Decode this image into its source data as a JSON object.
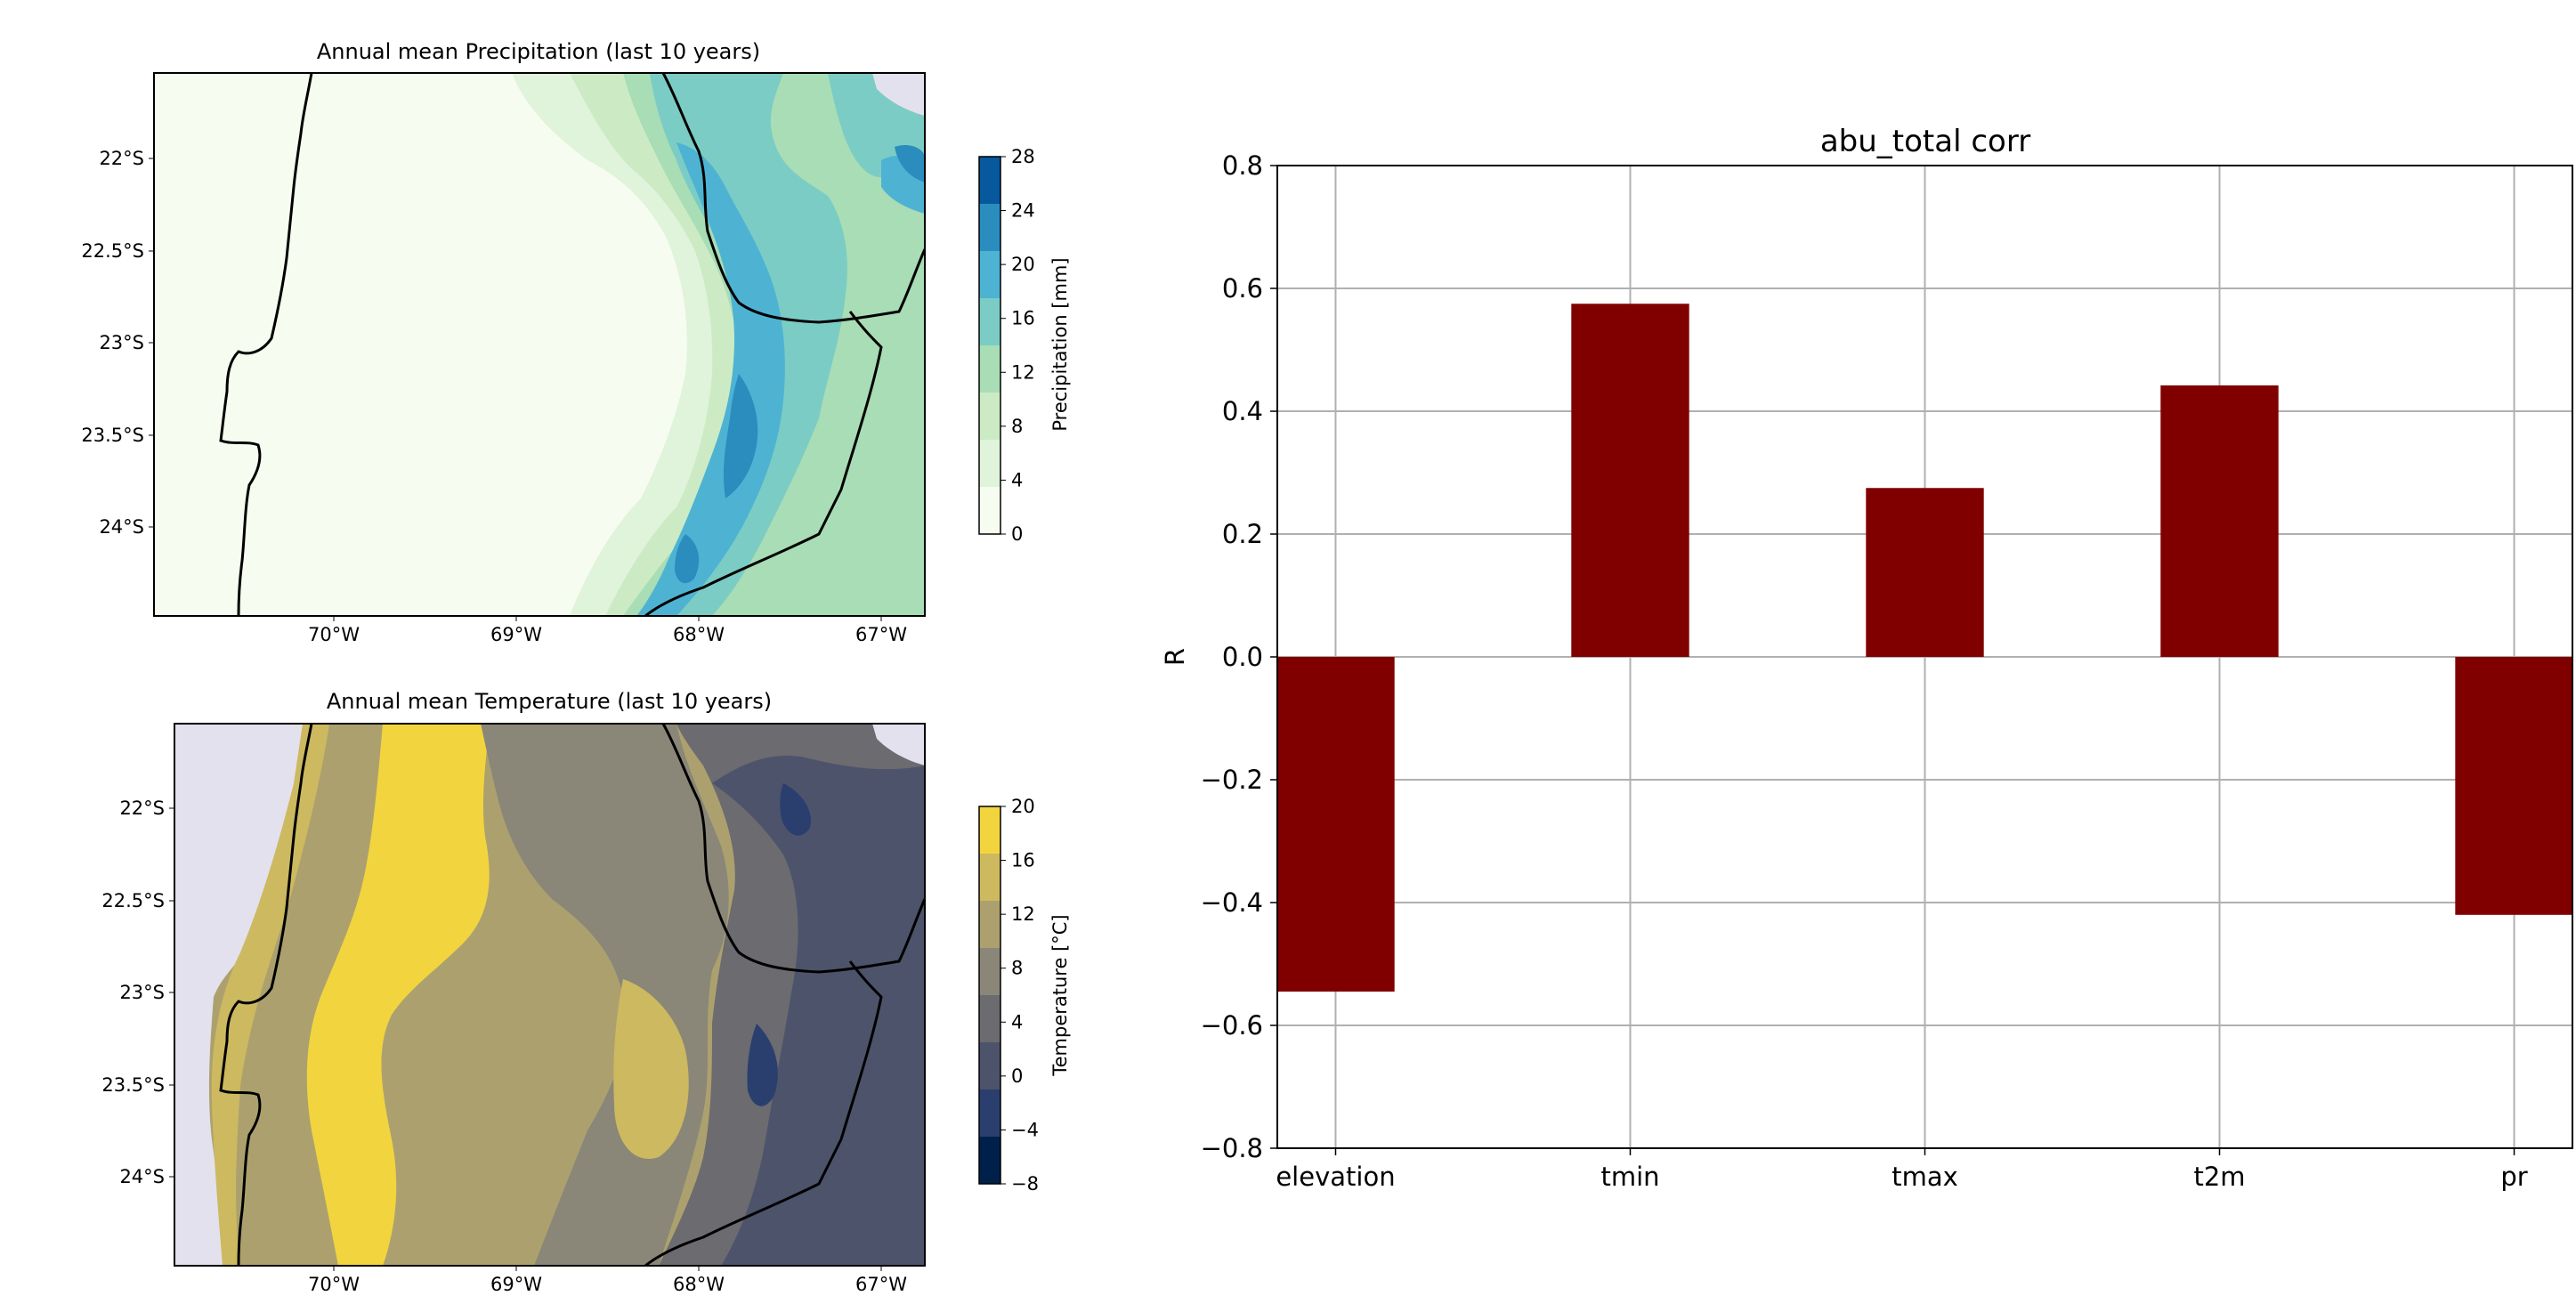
{
  "precip_map": {
    "title": "Annual mean Precipitation (last 10 years)",
    "lat_ticks": [
      "22°S",
      "22.5°S",
      "23°S",
      "23.5°S",
      "24°S"
    ],
    "lon_ticks": [
      "70°W",
      "69°W",
      "68°W",
      "67°W"
    ],
    "colorbar": {
      "label": "Precipitation [mm]",
      "ticks": [
        "0",
        "4",
        "8",
        "12",
        "16",
        "20",
        "24",
        "28"
      ],
      "colors": [
        "#f7fcf0",
        "#e0f3db",
        "#ccebc5",
        "#a8ddb5",
        "#7bccc4",
        "#4eb3d3",
        "#2b8cbe",
        "#08589e"
      ]
    }
  },
  "temp_map": {
    "title": "Annual mean Temperature (last 10 years)",
    "lat_ticks": [
      "22°S",
      "22.5°S",
      "23°S",
      "23.5°S",
      "24°S"
    ],
    "lon_ticks": [
      "70°W",
      "69°W",
      "68°W",
      "67°W"
    ],
    "colorbar": {
      "label": "Temperature [°C]",
      "ticks": [
        "−8",
        "−4",
        "0",
        "4",
        "8",
        "12",
        "16",
        "20"
      ],
      "colors": [
        "#00204c",
        "#2a3f6e",
        "#4d536b",
        "#6b6b70",
        "#8a8778",
        "#aca16e",
        "#cdb960",
        "#f2d43f"
      ]
    }
  },
  "chart_data": {
    "type": "bar",
    "title": "abu_total corr",
    "xlabel": "",
    "ylabel": "R",
    "categories": [
      "elevation",
      "tmin",
      "tmax",
      "t2m",
      "pr"
    ],
    "values": [
      -0.545,
      0.575,
      0.275,
      0.442,
      -0.42
    ],
    "ylim": [
      -0.8,
      0.8
    ],
    "yticks": [
      -0.8,
      -0.6,
      -0.4,
      -0.2,
      0.0,
      0.2,
      0.4,
      0.6,
      0.8
    ],
    "ytick_labels": [
      "−0.8",
      "−0.6",
      "−0.4",
      "−0.2",
      "0.0",
      "0.2",
      "0.4",
      "0.6",
      "0.8"
    ],
    "grid": true,
    "bar_color": "#800000"
  }
}
